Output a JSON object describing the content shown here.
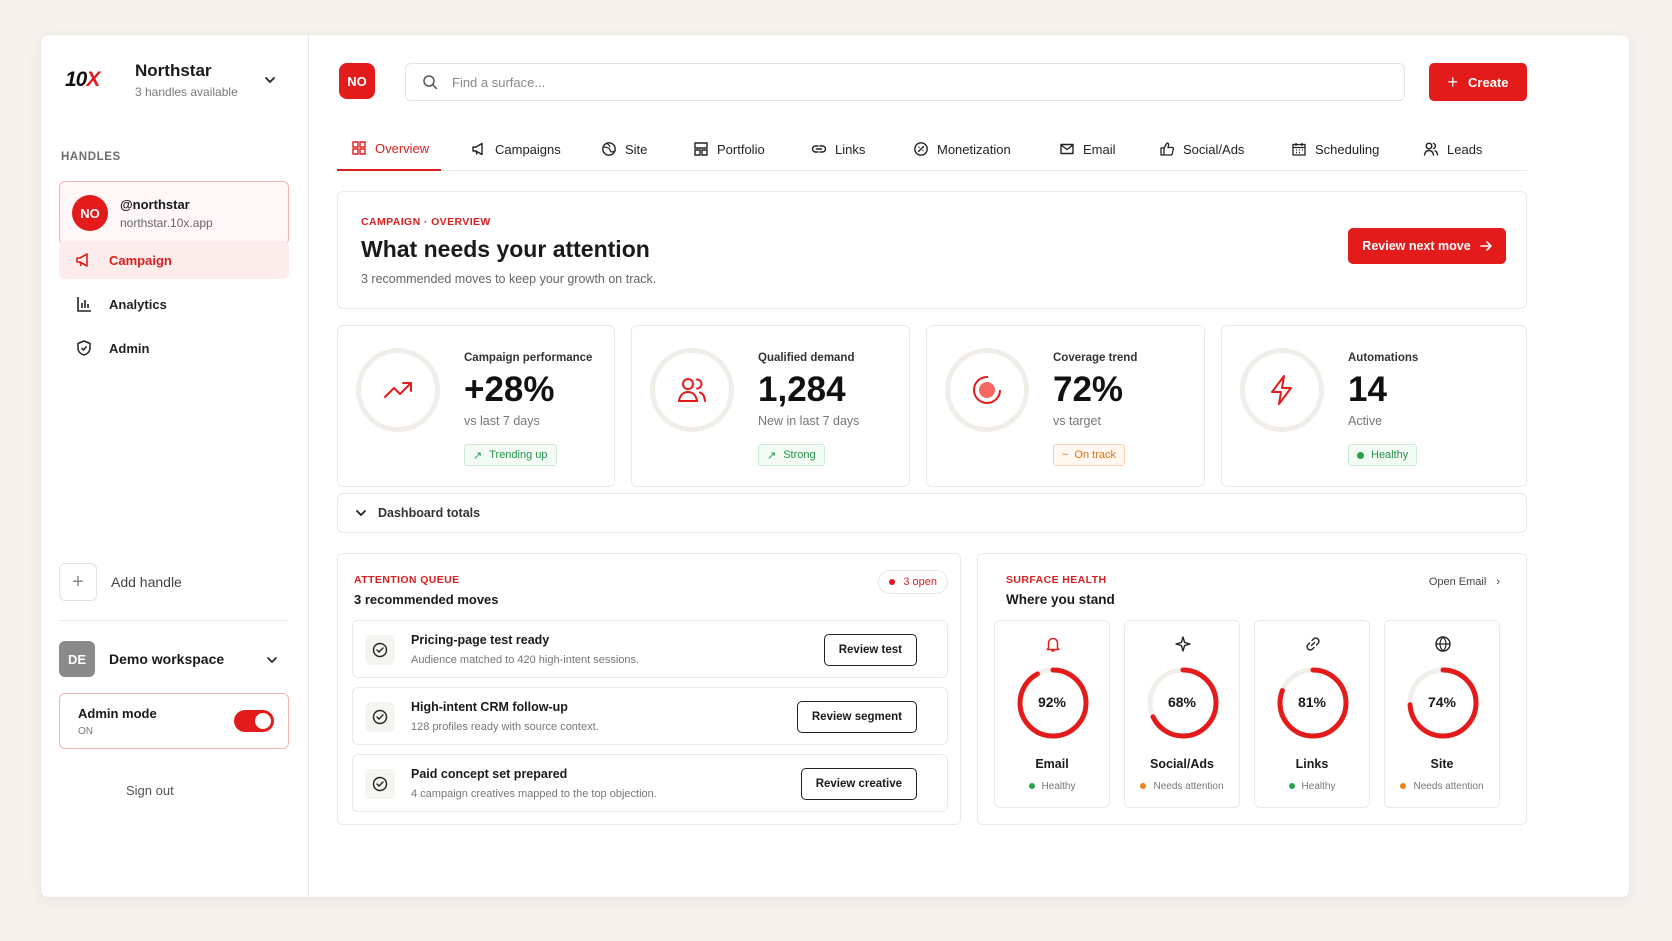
{
  "sidebar": {
    "logo": "10X",
    "workspace_name": "Northstar",
    "workspace_sub": "3 handles available",
    "section_label": "HANDLES",
    "handle": {
      "avatar": "NO",
      "name": "@northstar",
      "url": "northstar.10x.app"
    },
    "nav": [
      {
        "label": "Campaign",
        "icon": "megaphone-icon",
        "active": true
      },
      {
        "label": "Analytics",
        "icon": "bar-chart-icon",
        "active": false
      },
      {
        "label": "Admin",
        "icon": "shield-icon",
        "active": false
      }
    ],
    "add_handle": "Add handle",
    "demo": {
      "avatar": "DE",
      "name": "Demo workspace"
    },
    "admin": {
      "label": "Admin mode",
      "state": "ON"
    },
    "sign_out": "Sign out"
  },
  "header": {
    "avatar": "NO",
    "search_placeholder": "Find a surface...",
    "create_label": "Create"
  },
  "tabs": [
    {
      "label": "Overview",
      "icon": "grid-icon"
    },
    {
      "label": "Campaigns",
      "icon": "megaphone-icon"
    },
    {
      "label": "Site",
      "icon": "globe-icon"
    },
    {
      "label": "Portfolio",
      "icon": "layout-icon"
    },
    {
      "label": "Links",
      "icon": "link-icon"
    },
    {
      "label": "Monetization",
      "icon": "coin-icon"
    },
    {
      "label": "Email",
      "icon": "mail-icon"
    },
    {
      "label": "Social/Ads",
      "icon": "thumbs-up-icon"
    },
    {
      "label": "Scheduling",
      "icon": "calendar-icon"
    },
    {
      "label": "Leads",
      "icon": "users-icon"
    }
  ],
  "hero": {
    "kicker": "CAMPAIGN · OVERVIEW",
    "title": "What needs your attention",
    "subtitle": "3 recommended moves to keep your growth on track.",
    "button": "Review next move"
  },
  "stats": [
    {
      "label": "Campaign performance",
      "value": "+28%",
      "sub": "vs last 7 days",
      "pill": "Trending up",
      "pill_type": "green",
      "icon": "trend-up-icon"
    },
    {
      "label": "Qualified demand",
      "value": "1,284",
      "sub": "New in last 7 days",
      "pill": "Strong",
      "pill_type": "green",
      "icon": "users-icon"
    },
    {
      "label": "Coverage trend",
      "value": "72%",
      "sub": "vs target",
      "pill": "On track",
      "pill_type": "orange",
      "icon": "target-icon"
    },
    {
      "label": "Automations",
      "value": "14",
      "sub": "Active",
      "pill": "Healthy",
      "pill_type": "dot",
      "icon": "bolt-icon"
    }
  ],
  "totals_label": "Dashboard totals",
  "queue": {
    "kicker": "ATTENTION QUEUE",
    "title": "3 recommended moves",
    "open_badge": "3 open",
    "items": [
      {
        "title": "Pricing-page test ready",
        "desc": "Audience matched to 420 high-intent sessions.",
        "button": "Review test"
      },
      {
        "title": "High-intent CRM follow-up",
        "desc": "128 profiles ready with source context.",
        "button": "Review segment"
      },
      {
        "title": "Paid concept set prepared",
        "desc": "4 campaign creatives mapped to the top objection.",
        "button": "Review creative"
      }
    ]
  },
  "health": {
    "kicker": "SURFACE HEALTH",
    "title": "Where you stand",
    "open_link": "Open Email",
    "cards": [
      {
        "name": "Email",
        "percent": 92,
        "label": "92%",
        "status": "Healthy",
        "status_color": "#27a347",
        "icon": "bell-icon"
      },
      {
        "name": "Social/Ads",
        "percent": 68,
        "label": "68%",
        "status": "Needs attention",
        "status_color": "#f0801f",
        "icon": "sparkle-icon"
      },
      {
        "name": "Links",
        "percent": 81,
        "label": "81%",
        "status": "Healthy",
        "status_color": "#27a347",
        "icon": "link-icon"
      },
      {
        "name": "Site",
        "percent": 74,
        "label": "74%",
        "status": "Needs attention",
        "status_color": "#f0801f",
        "icon": "globe-icon"
      }
    ]
  },
  "colors": {
    "accent": "#e31b1b",
    "healthy": "#27a347",
    "warning": "#f0801f"
  }
}
